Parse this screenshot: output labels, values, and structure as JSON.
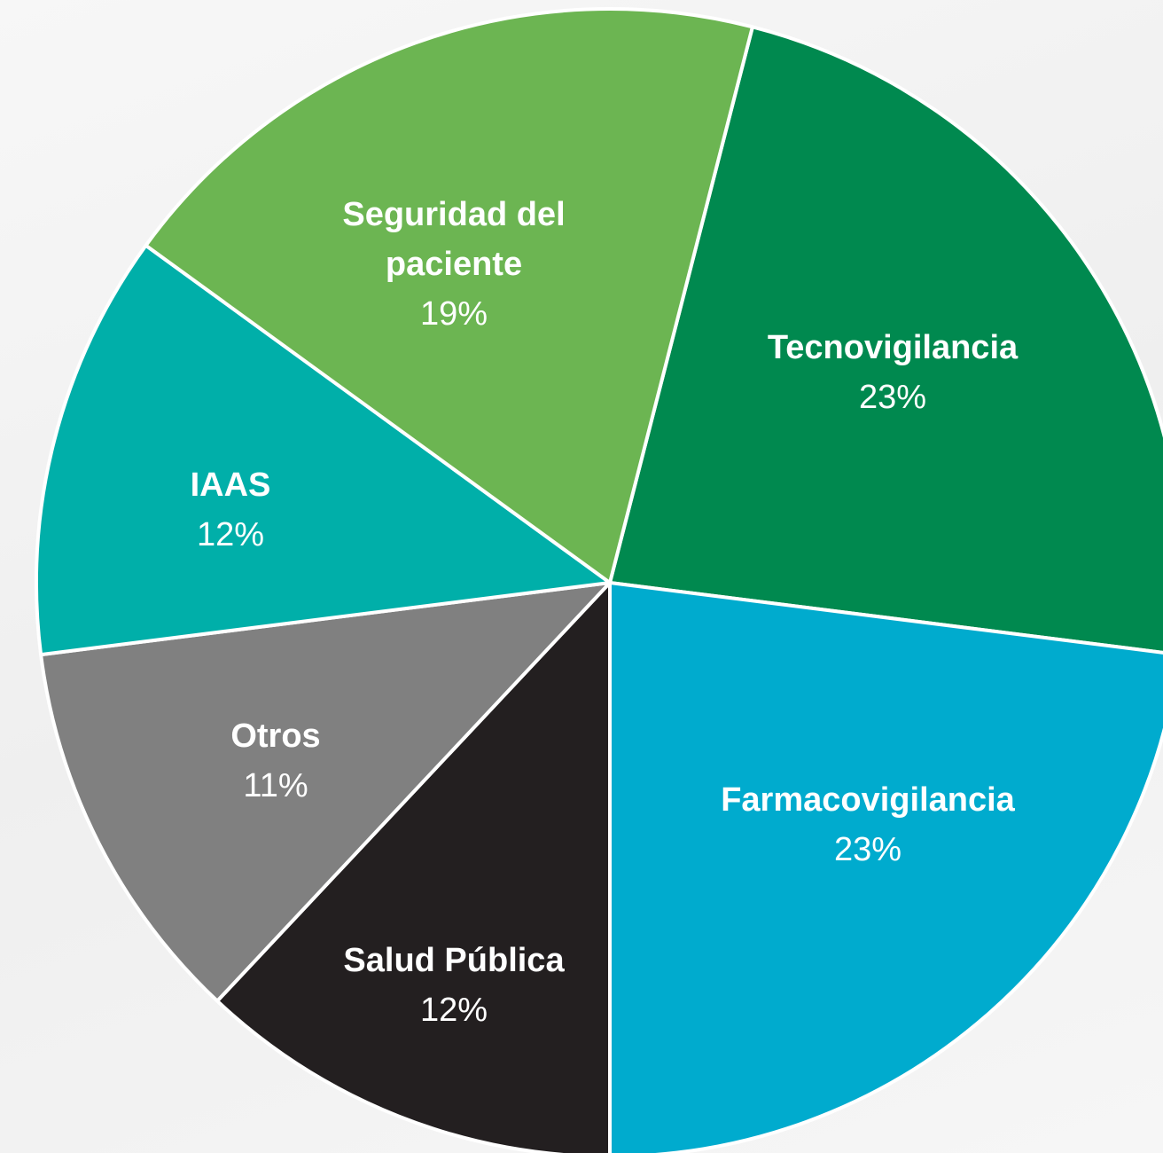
{
  "chart_data": {
    "type": "pie",
    "categories": [
      "Tecnovigilancia",
      "Farmacovigilancia",
      "Salud Pública",
      "Otros",
      "IAAS",
      "Seguridad del paciente"
    ],
    "values": [
      23,
      23,
      12,
      11,
      12,
      19
    ],
    "value_labels": [
      "23%",
      "23%",
      "12%",
      "11%",
      "12%",
      "19%"
    ],
    "colors": [
      "#00894f",
      "#00abce",
      "#231f20",
      "#808080",
      "#00afa9",
      "#6cb552"
    ]
  }
}
